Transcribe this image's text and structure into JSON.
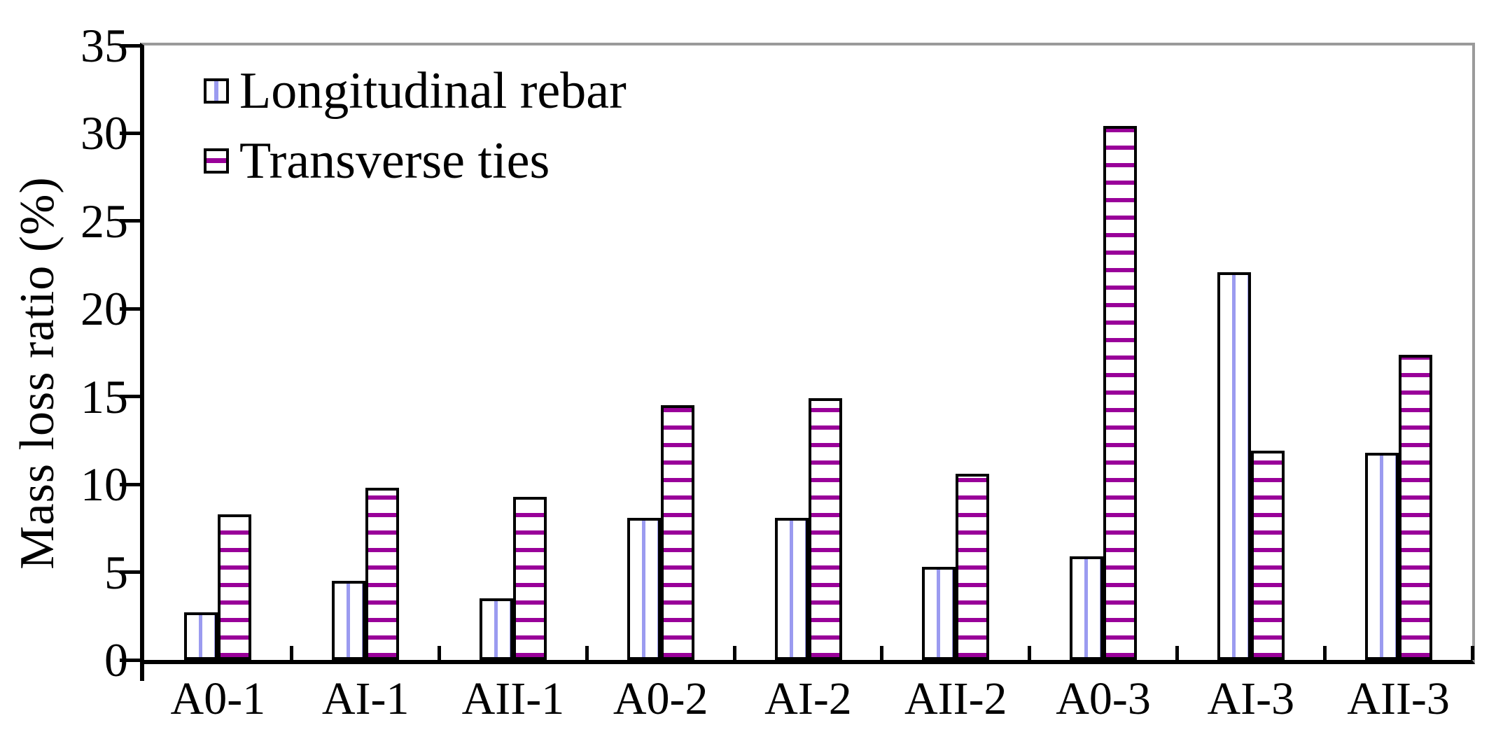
{
  "chart_data": {
    "type": "bar",
    "title": "",
    "xlabel": "",
    "ylabel": "Mass loss ratio (%)",
    "ylim": [
      0,
      35
    ],
    "yticks": [
      0,
      5,
      10,
      15,
      20,
      25,
      30,
      35
    ],
    "grid": false,
    "legend_position": "top-left-inside",
    "categories": [
      "A0-1",
      "AI-1",
      "AII-1",
      "A0-2",
      "AI-2",
      "AII-2",
      "A0-3",
      "AI-3",
      "AII-3"
    ],
    "series": [
      {
        "name": "Longitudinal rebar",
        "pattern": "vertical-stripes",
        "stripe_color": "#9b9bf0",
        "fill_color": "#ffffff",
        "outline_color": "#000000",
        "values": [
          2.7,
          4.5,
          3.5,
          8.1,
          8.1,
          5.3,
          5.9,
          22.1,
          11.8
        ]
      },
      {
        "name": "Transverse ties",
        "pattern": "horizontal-stripes",
        "stripe_color": "#990099",
        "fill_color": "#ffffff",
        "outline_color": "#000000",
        "values": [
          8.3,
          9.8,
          9.3,
          14.5,
          14.9,
          10.6,
          30.4,
          11.9,
          17.4
        ]
      }
    ],
    "plot_border_colors": {
      "left": "#000000",
      "bottom": "#000000",
      "top": "#9a9a9a",
      "right": "#9a9a9a"
    }
  }
}
